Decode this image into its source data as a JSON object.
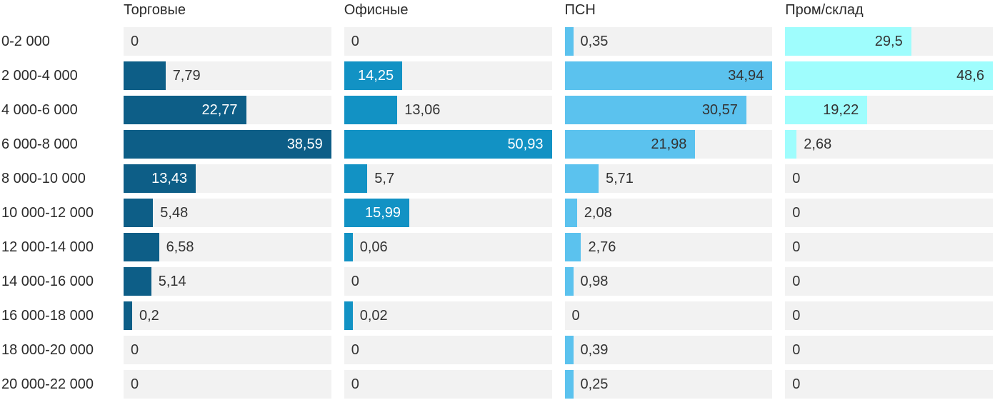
{
  "chart_data": {
    "type": "bar",
    "orientation": "horizontal",
    "layout": "small-multiples, 4 columns sharing one category axis, each column scaled to its own max",
    "grid": "off",
    "legend": "column-headers",
    "track_background": "#f2f2f2",
    "text_color": "#2b2b2b",
    "categories": [
      "0-2 000",
      "2 000-4 000",
      "4 000-6 000",
      "6 000-8 000",
      "8 000-10 000",
      "10 000-12 000",
      "12 000-14 000",
      "14 000-16 000",
      "16 000-18 000",
      "18 000-20 000",
      "20 000-22 000"
    ],
    "series": [
      {
        "name": "Торговые",
        "color": "#0d5e87",
        "label_inside_color": "#ffffff",
        "max": 38.59,
        "values": [
          0,
          7.79,
          22.77,
          38.59,
          13.43,
          5.48,
          6.58,
          5.14,
          0.2,
          0,
          0
        ],
        "labels": [
          "0",
          "7,79",
          "22,77",
          "38,59",
          "13,43",
          "5,48",
          "6,58",
          "5,14",
          "0,2",
          "0",
          "0"
        ]
      },
      {
        "name": "Офисные",
        "color": "#1292c4",
        "label_inside_color": "#ffffff",
        "max": 50.93,
        "values": [
          0,
          14.25,
          13.06,
          50.93,
          5.7,
          15.99,
          0.06,
          0,
          0.02,
          0,
          0
        ],
        "labels": [
          "0",
          "14,25",
          "13,06",
          "50,93",
          "5,7",
          "15,99",
          "0,06",
          "0",
          "0,02",
          "0",
          "0"
        ]
      },
      {
        "name": "ПСН",
        "color": "#5bc2ee",
        "label_inside_color": "#333333",
        "max": 34.94,
        "values": [
          0.35,
          34.94,
          30.57,
          21.98,
          5.71,
          2.08,
          2.76,
          0.98,
          0,
          0.39,
          0.25
        ],
        "labels": [
          "0,35",
          "34,94",
          "30,57",
          "21,98",
          "5,71",
          "2,08",
          "2,76",
          "0,98",
          "0",
          "0,39",
          "0,25"
        ]
      },
      {
        "name": "Пром/склад",
        "color": "#9ffdfd",
        "label_inside_color": "#333333",
        "max": 48.6,
        "values": [
          29.5,
          48.6,
          19.22,
          2.68,
          0,
          0,
          0,
          0,
          0,
          0,
          0
        ],
        "labels": [
          "29,5",
          "48,6",
          "19,22",
          "2,68",
          "0",
          "0",
          "0",
          "0",
          "0",
          "0",
          "0"
        ]
      }
    ]
  }
}
